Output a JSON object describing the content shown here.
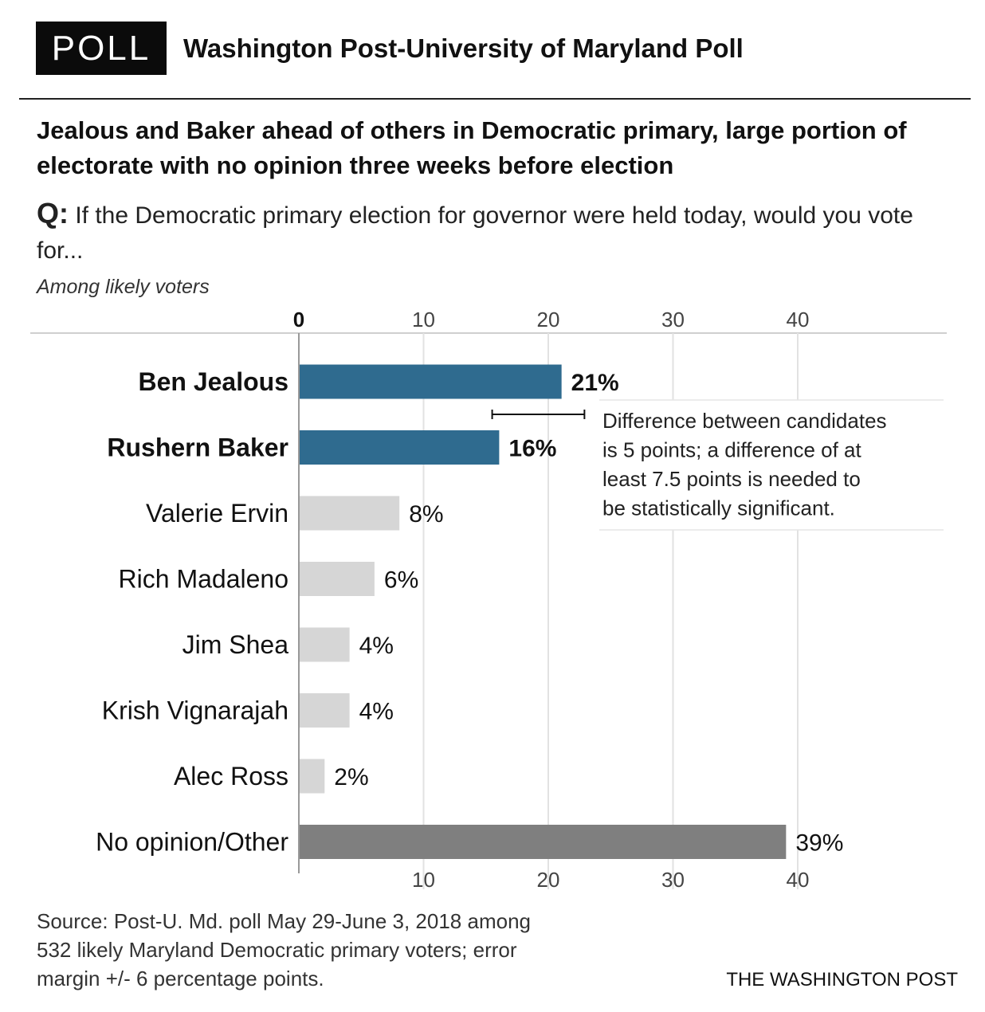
{
  "header": {
    "badge": "POLL",
    "title": "Washington Post-University of Maryland Poll"
  },
  "headline": "Jealous and Baker ahead of others in Democratic primary, large portion of electorate with no opinion three weeks before election",
  "question": {
    "prefix": "Q:",
    "text": " If the Democratic primary election for governor were held today, would you vote for..."
  },
  "subnote": "Among likely voters",
  "chart_data": {
    "type": "bar",
    "orientation": "horizontal",
    "title": "",
    "xlabel": "",
    "ylabel": "",
    "xlim": [
      0,
      50
    ],
    "ticks": [
      0,
      10,
      20,
      30,
      40
    ],
    "grid": true,
    "categories": [
      "Ben Jealous",
      "Rushern Baker",
      "Valerie Ervin",
      "Rich Madaleno",
      "Jim Shea",
      "Krish Vignarajah",
      "Alec Ross",
      "No opinion/Other"
    ],
    "values": [
      21,
      16,
      8,
      6,
      4,
      4,
      2,
      39
    ],
    "labels": [
      "21%",
      "16%",
      "8%",
      "6%",
      "4%",
      "4%",
      "2%",
      "39%"
    ],
    "highlight": [
      true,
      true,
      false,
      false,
      false,
      false,
      false,
      false
    ],
    "colors": [
      "#2f6b8f",
      "#2f6b8f",
      "#d6d6d6",
      "#d6d6d6",
      "#d6d6d6",
      "#d6d6d6",
      "#d6d6d6",
      "#7f7f7f"
    ],
    "error_bar": {
      "from": 15.5,
      "to": 22.9
    },
    "annotation": "Difference between candidates is 5 points; a difference of at least 7.5 points is needed to be statistically significant."
  },
  "source": "Source: Post-U. Md. poll  May 29-June 3, 2018 among 532 likely Maryland Democratic primary voters; error margin +/- 6 percentage points.",
  "credit": "THE WASHINGTON POST"
}
